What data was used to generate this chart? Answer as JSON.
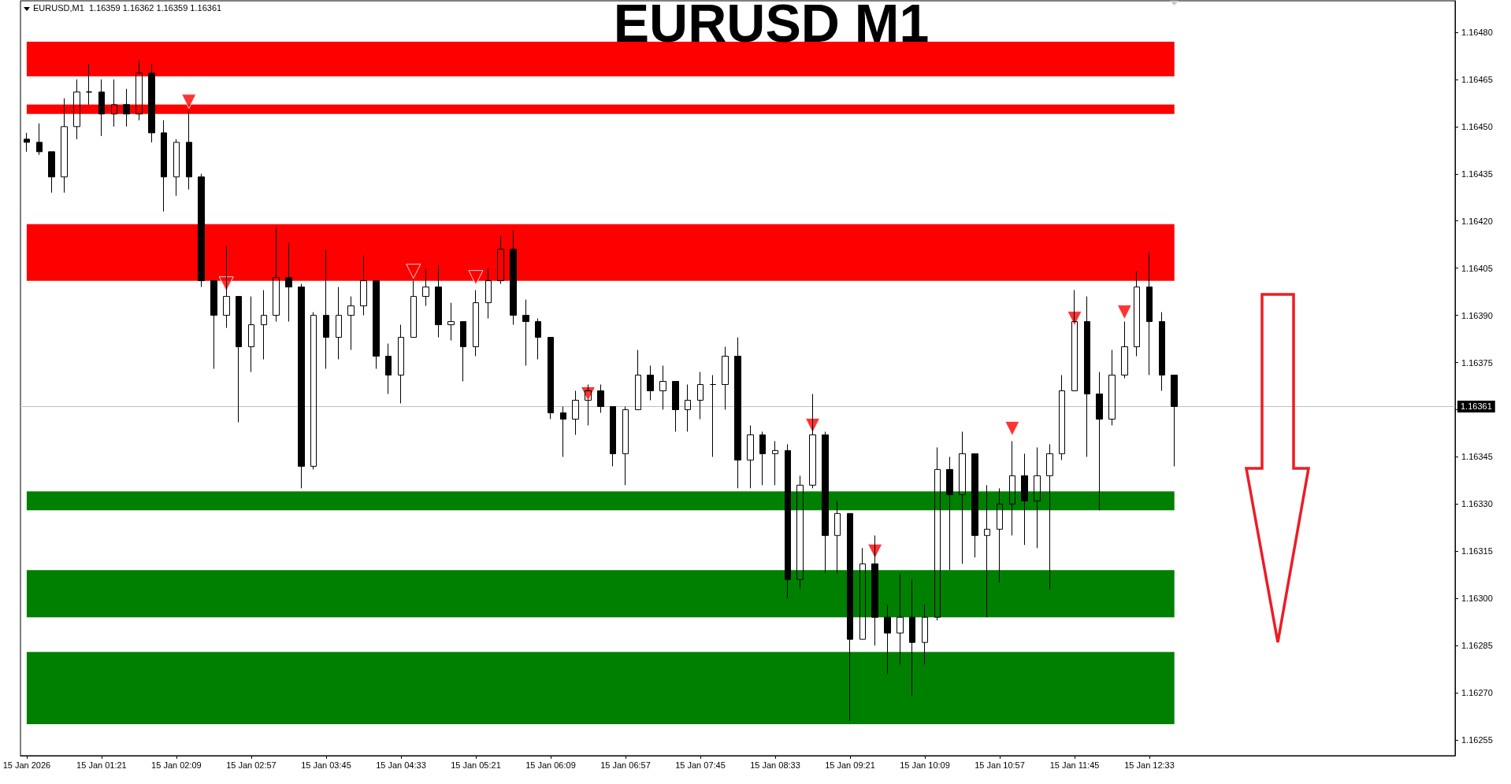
{
  "chart_data": {
    "type": "candlestick",
    "title": "EURUSD M1",
    "annotations": [
      "EURUSD,M1  1.16359 1.16362 1.16359 1.16361"
    ],
    "categories": [
      "15 Jan 2026",
      null,
      null,
      null,
      null,
      null,
      "15 Jan 01:21",
      null,
      null,
      null,
      null,
      null,
      "15 Jan 02:09",
      null,
      null,
      null,
      null,
      null,
      "15 Jan 02:57",
      null,
      null,
      null,
      null,
      null,
      "15 Jan 03:45",
      null,
      null,
      null,
      null,
      null,
      "15 Jan 04:33",
      null,
      null,
      null,
      null,
      null,
      "15 Jan 05:21",
      null,
      null,
      null,
      null,
      null,
      "15 Jan 06:09",
      null,
      null,
      null,
      null,
      null,
      "15 Jan 06:57",
      null,
      null,
      null,
      null,
      null,
      "15 Jan 07:45",
      null,
      null,
      null,
      null,
      null,
      "15 Jan 08:33",
      null,
      null,
      null,
      null,
      null,
      "15 Jan 09:21",
      null,
      null,
      null,
      null,
      null,
      "15 Jan 10:09",
      null,
      null,
      null,
      null,
      null,
      "15 Jan 10:57",
      null,
      null,
      null,
      null,
      null,
      "15 Jan 11:45",
      null,
      null,
      null,
      null,
      null,
      "15 Jan 12:33",
      null,
      null,
      null,
      null,
      null,
      null,
      null,
      null,
      null,
      null,
      null,
      null,
      null,
      null,
      null,
      null,
      null,
      null,
      null,
      null,
      null,
      null,
      null,
      null
    ],
    "ylim": [
      1.1625,
      1.1649
    ],
    "yticks": [
      {
        "value": 1.1648,
        "label": "1.16480"
      },
      1.16465,
      {
        "value": 1.1645,
        "label": "1.16450"
      },
      1.16435,
      {
        "value": 1.1642,
        "label": "1.16420"
      },
      1.16405,
      {
        "value": 1.1639,
        "label": "1.16390"
      },
      1.16375,
      {
        "value": 1.1636,
        "label": null
      },
      1.16345,
      {
        "value": 1.1633,
        "label": "1.16330"
      },
      1.16315,
      {
        "value": 1.163,
        "label": "1.16300"
      },
      1.16285,
      {
        "value": 1.1627,
        "label": "1.16270"
      },
      1.16255
    ],
    "series": [
      {
        "color": "#000000",
        "ohlc": [
          [
            1.16446,
            1.16448,
            1.16442,
            1.16445
          ],
          [
            1.16445,
            1.16451,
            1.16441,
            1.16442
          ],
          [
            1.16442,
            1.16442,
            1.16429,
            1.16434
          ],
          [
            1.16434,
            1.16459,
            1.16429,
            1.1645
          ],
          [
            1.1645,
            1.16465,
            1.16446,
            1.16461
          ],
          [
            1.16461,
            1.1647,
            1.16457,
            1.16461
          ],
          [
            1.16461,
            1.16465,
            1.16447,
            1.16454
          ],
          [
            1.16454,
            1.16465,
            1.1645,
            1.16457
          ],
          [
            1.16457,
            1.16462,
            1.1645,
            1.16454
          ],
          [
            1.16454,
            1.16471,
            1.16452,
            1.16467
          ],
          [
            1.16467,
            1.1647,
            1.16445,
            1.16448
          ],
          [
            1.16448,
            1.16452,
            1.16423,
            1.16434
          ],
          [
            1.16434,
            1.16446,
            1.16428,
            1.16445
          ],
          [
            1.16445,
            1.16455,
            1.1643,
            1.16434
          ],
          [
            1.16434,
            1.16435,
            1.16399,
            1.16401
          ],
          [
            1.16401,
            1.16401,
            1.16373,
            1.1639
          ],
          [
            1.1639,
            1.16412,
            1.16386,
            1.16396
          ],
          [
            1.16396,
            1.16396,
            1.16356,
            1.1638
          ],
          [
            1.1638,
            1.16396,
            1.16372,
            1.16387
          ],
          [
            1.16387,
            1.16398,
            1.16376,
            1.1639
          ],
          [
            1.1639,
            1.16418,
            1.16388,
            1.16402
          ],
          [
            1.16402,
            1.16413,
            1.16388,
            1.16399
          ],
          [
            1.16399,
            1.164,
            1.16335,
            1.16342
          ],
          [
            1.16342,
            1.16391,
            1.16341,
            1.1639
          ],
          [
            1.1639,
            1.16411,
            1.16373,
            1.16383
          ],
          [
            1.16383,
            1.16399,
            1.16376,
            1.1639
          ],
          [
            1.1639,
            1.16396,
            1.16379,
            1.16393
          ],
          [
            1.16393,
            1.16409,
            1.1639,
            1.16401
          ],
          [
            1.16401,
            1.16401,
            1.16373,
            1.16377
          ],
          [
            1.16377,
            1.16381,
            1.16365,
            1.16371
          ],
          [
            1.16371,
            1.16387,
            1.16362,
            1.16383
          ],
          [
            1.16383,
            1.16401,
            1.16383,
            1.16396
          ],
          [
            1.16396,
            1.16405,
            1.16393,
            1.16399
          ],
          [
            1.16399,
            1.16406,
            1.16383,
            1.16387
          ],
          [
            1.16387,
            1.16394,
            1.16382,
            1.16388
          ],
          [
            1.16388,
            1.16388,
            1.16369,
            1.1638
          ],
          [
            1.1638,
            1.16398,
            1.16377,
            1.16394
          ],
          [
            1.16394,
            1.16405,
            1.16389,
            1.16401
          ],
          [
            1.16401,
            1.16415,
            1.164,
            1.16411
          ],
          [
            1.16411,
            1.16417,
            1.16387,
            1.1639
          ],
          [
            1.1639,
            1.16395,
            1.16374,
            1.16388
          ],
          [
            1.16388,
            1.16389,
            1.16376,
            1.16383
          ],
          [
            1.16383,
            1.16383,
            1.16357,
            1.16359
          ],
          [
            1.16359,
            1.16361,
            1.16345,
            1.16357
          ],
          [
            1.16357,
            1.16366,
            1.16352,
            1.16363
          ],
          [
            1.16363,
            1.16368,
            1.16355,
            1.16366
          ],
          [
            1.16366,
            1.16368,
            1.16359,
            1.16361
          ],
          [
            1.16361,
            1.16361,
            1.16342,
            1.16346
          ],
          [
            1.16346,
            1.16361,
            1.16336,
            1.1636
          ],
          [
            1.1636,
            1.16379,
            1.1636,
            1.16371
          ],
          [
            1.16371,
            1.16374,
            1.16363,
            1.16366
          ],
          [
            1.16366,
            1.16374,
            1.1636,
            1.16369
          ],
          [
            1.16369,
            1.16369,
            1.16353,
            1.1636
          ],
          [
            1.1636,
            1.16368,
            1.16353,
            1.16363
          ],
          [
            1.16363,
            1.16372,
            1.16357,
            1.16368
          ],
          [
            1.16368,
            1.16371,
            1.16345,
            1.16368
          ],
          [
            1.16368,
            1.1638,
            1.1636,
            1.16377
          ],
          [
            1.16377,
            1.16383,
            1.16335,
            1.16344
          ],
          [
            1.16344,
            1.16355,
            1.16335,
            1.16352
          ],
          [
            1.16352,
            1.16353,
            1.16336,
            1.16346
          ],
          [
            1.16346,
            1.1635,
            1.16336,
            1.16347
          ],
          [
            1.16347,
            1.16349,
            1.163,
            1.16306
          ],
          [
            1.16306,
            1.16339,
            1.16303,
            1.16336
          ],
          [
            1.16336,
            1.16365,
            1.16335,
            1.16352
          ],
          [
            1.16352,
            1.16353,
            1.16308,
            1.1632
          ],
          [
            1.1632,
            1.16331,
            1.16308,
            1.16327
          ],
          [
            1.16327,
            1.16327,
            1.16261,
            1.16287
          ],
          [
            1.16287,
            1.16316,
            1.16287,
            1.16311
          ],
          [
            1.16311,
            1.1632,
            1.16285,
            1.16294
          ],
          [
            1.16294,
            1.16298,
            1.16276,
            1.16289
          ],
          [
            1.16289,
            1.16308,
            1.16279,
            1.16294
          ],
          [
            1.16294,
            1.16306,
            1.16269,
            1.16286
          ],
          [
            1.16286,
            1.16298,
            1.16279,
            1.16294
          ],
          [
            1.16294,
            1.16348,
            1.16293,
            1.16341
          ],
          [
            1.16341,
            1.16345,
            1.16309,
            1.16333
          ],
          [
            1.16333,
            1.16353,
            1.16311,
            1.16346
          ],
          [
            1.16346,
            1.16346,
            1.16313,
            1.1632
          ],
          [
            1.1632,
            1.16336,
            1.16294,
            1.16322
          ],
          [
            1.16322,
            1.16335,
            1.16305,
            1.1633
          ],
          [
            1.1633,
            1.1635,
            1.1632,
            1.16339
          ],
          [
            1.16339,
            1.16346,
            1.16317,
            1.16331
          ],
          [
            1.16331,
            1.16348,
            1.16316,
            1.16339
          ],
          [
            1.16339,
            1.16349,
            1.16303,
            1.16346
          ],
          [
            1.16346,
            1.16371,
            1.16344,
            1.16366
          ],
          [
            1.16366,
            1.16398,
            1.16366,
            1.16388
          ],
          [
            1.16388,
            1.16396,
            1.16345,
            1.16365
          ],
          [
            1.16365,
            1.16372,
            1.16328,
            1.16357
          ],
          [
            1.16357,
            1.16379,
            1.16355,
            1.16371
          ],
          [
            1.16371,
            1.16388,
            1.1637,
            1.1638
          ],
          [
            1.1638,
            1.16404,
            1.16377,
            1.16399
          ],
          [
            1.16399,
            1.1641,
            1.16371,
            1.16388
          ],
          [
            1.16388,
            1.16391,
            1.16366,
            1.16371
          ],
          [
            1.16371,
            1.16371,
            1.16342,
            1.16361
          ],
          null,
          null,
          null,
          null,
          null,
          null,
          null,
          null,
          null,
          null,
          null,
          null,
          null,
          null,
          null,
          null,
          null,
          null,
          null,
          null,
          null,
          null
        ]
      },
      {
        "type": "scatter",
        "color": "#ff0000",
        "marker": "triangle",
        "values": [
          null,
          null,
          null,
          null,
          null,
          null,
          null,
          null,
          null,
          null,
          null,
          null,
          null,
          1.16458,
          null,
          null,
          1.164,
          null,
          null,
          null,
          null,
          null,
          null,
          null,
          null,
          null,
          null,
          null,
          null,
          null,
          null,
          1.16404,
          null,
          null,
          null,
          null,
          1.16402,
          null,
          null,
          null,
          null,
          null,
          null,
          null,
          null,
          1.16365,
          null,
          null,
          null,
          null,
          null,
          null,
          null,
          null,
          null,
          null,
          null,
          null,
          null,
          null,
          null,
          null,
          null,
          1.16355,
          null,
          null,
          null,
          null,
          1.16315,
          null,
          null,
          null,
          null,
          null,
          null,
          null,
          null,
          null,
          null,
          1.16354,
          null,
          null,
          null,
          null,
          1.16389,
          null,
          null,
          null,
          1.16391,
          null,
          null,
          null,
          null,
          null,
          null,
          null,
          null,
          null,
          null,
          null,
          null,
          null,
          null,
          null,
          null,
          null,
          null,
          null,
          null,
          null,
          null,
          null,
          null,
          null,
          null
        ]
      }
    ],
    "bands": [
      {
        "axis": "y",
        "from": 1.16466,
        "to": 1.16477,
        "color": "#ff0000"
      },
      {
        "axis": "y",
        "from": 1.16454,
        "to": 1.16457,
        "color": "#ff0000"
      },
      {
        "axis": "y",
        "from": 1.16401,
        "to": 1.16419,
        "color": "#ff0000"
      },
      {
        "axis": "y",
        "from": 1.16328,
        "to": 1.16334,
        "color": "#008000"
      },
      {
        "axis": "y",
        "from": 1.16294,
        "to": 1.16309,
        "color": "#008000"
      },
      {
        "axis": "y",
        "from": 1.1626,
        "to": 1.16283,
        "color": "#008000"
      }
    ],
    "ref_lines": [
      {
        "axis": "y",
        "value": 1.16361,
        "label": "1.16361",
        "color": "#c0c0c0"
      }
    ]
  }
}
